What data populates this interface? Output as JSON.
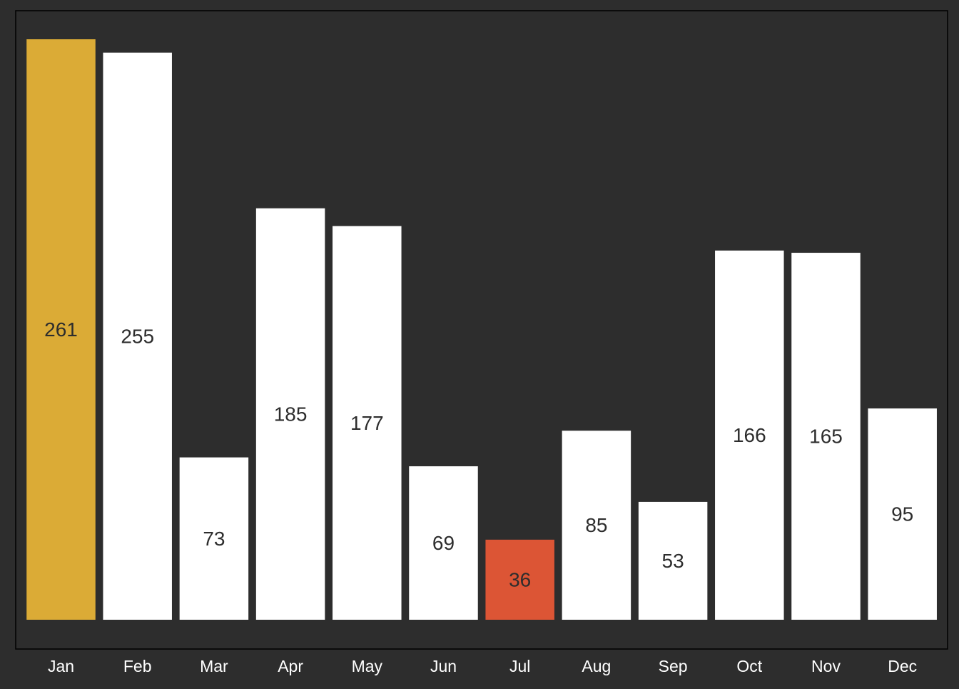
{
  "chart_data": {
    "type": "bar",
    "title": "",
    "xlabel": "",
    "ylabel": "",
    "categories": [
      "Jan",
      "Feb",
      "Mar",
      "Apr",
      "May",
      "Jun",
      "Jul",
      "Aug",
      "Sep",
      "Oct",
      "Nov",
      "Dec"
    ],
    "values": [
      261,
      255,
      73,
      185,
      177,
      69,
      36,
      85,
      53,
      166,
      165,
      95
    ],
    "ylim": [
      0,
      261
    ],
    "grid": false,
    "legend": "none",
    "data_labels": "centered-in-bar",
    "colors": {
      "background": "#2d2d2d",
      "panel_border": "#000000",
      "bar_default": "#ffffff",
      "bar_highest": "#dbab36",
      "bar_lowest": "#dc5535",
      "bar_label": "#2d2d2d",
      "tick_label": "#ffffff"
    }
  }
}
